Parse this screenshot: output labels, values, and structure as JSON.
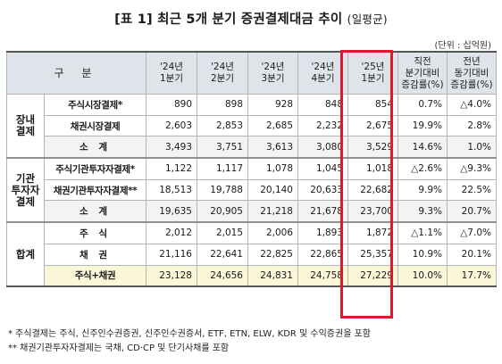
{
  "title": {
    "main": "[표 1] 최근 5개 분기 증권결제대금 추이",
    "sub": "(일평균)"
  },
  "unit": "(단위 : 십억원)",
  "header": {
    "category": "구 분",
    "periods": [
      "'24년\n1분기",
      "'24년\n2분기",
      "'24년\n3분기",
      "'24년\n4분기",
      "'25년\n1분기"
    ],
    "qoq": "직전\n분기대비\n증감률(%)",
    "yoy": "전년\n동기대비\n증감률(%)"
  },
  "groups": [
    {
      "label": "장내\n결제",
      "rows": [
        {
          "name": "주식시장결제*",
          "values": [
            "890",
            "898",
            "928",
            "848",
            "854"
          ],
          "qoq": "0.7%",
          "yoy": "△4.0%"
        },
        {
          "name": "채권시장결제",
          "values": [
            "2,603",
            "2,853",
            "2,685",
            "2,232",
            "2,675"
          ],
          "qoq": "19.9%",
          "yoy": "2.8%"
        },
        {
          "name": "소 계",
          "values": [
            "3,493",
            "3,751",
            "3,613",
            "3,080",
            "3,529"
          ],
          "qoq": "14.6%",
          "yoy": "1.0%"
        }
      ]
    },
    {
      "label": "기관\n투자자\n결제",
      "rows": [
        {
          "name": "주식기관투자자결제*",
          "values": [
            "1,122",
            "1,117",
            "1,078",
            "1,045",
            "1,018"
          ],
          "qoq": "△2.6%",
          "yoy": "△9.3%"
        },
        {
          "name": "채권기관투자자결제**",
          "values": [
            "18,513",
            "19,788",
            "20,140",
            "20,633",
            "22,682"
          ],
          "qoq": "9.9%",
          "yoy": "22.5%"
        },
        {
          "name": "소 계",
          "values": [
            "19,635",
            "20,905",
            "21,218",
            "21,678",
            "23,700"
          ],
          "qoq": "9.3%",
          "yoy": "20.7%"
        }
      ]
    },
    {
      "label": "합계",
      "rows": [
        {
          "name": "주 식",
          "values": [
            "2,012",
            "2,015",
            "2,006",
            "1,893",
            "1,872"
          ],
          "qoq": "△1.1%",
          "yoy": "△7.0%"
        },
        {
          "name": "채 권",
          "values": [
            "21,116",
            "22,641",
            "22,825",
            "22,865",
            "25,357"
          ],
          "qoq": "10.9%",
          "yoy": "20.1%"
        },
        {
          "name": "주식+채권",
          "values": [
            "23,128",
            "24,656",
            "24,831",
            "24,758",
            "27,229"
          ],
          "qoq": "10.0%",
          "yoy": "17.7%"
        }
      ]
    }
  ],
  "footnotes": [
    "*  주식결제는 주식, 신주인수권증권, 신주인수권증서, ETF, ETN, ELW, KDR 및 수익증권을 포함",
    "** 채권기관투자자결제는 국채, CD·CP 및 단기사채를 포함"
  ],
  "colors": {
    "highlight_border": "#e0182d",
    "header_bg": "#dfe4ea",
    "total_bg": "#fbf6d8"
  }
}
